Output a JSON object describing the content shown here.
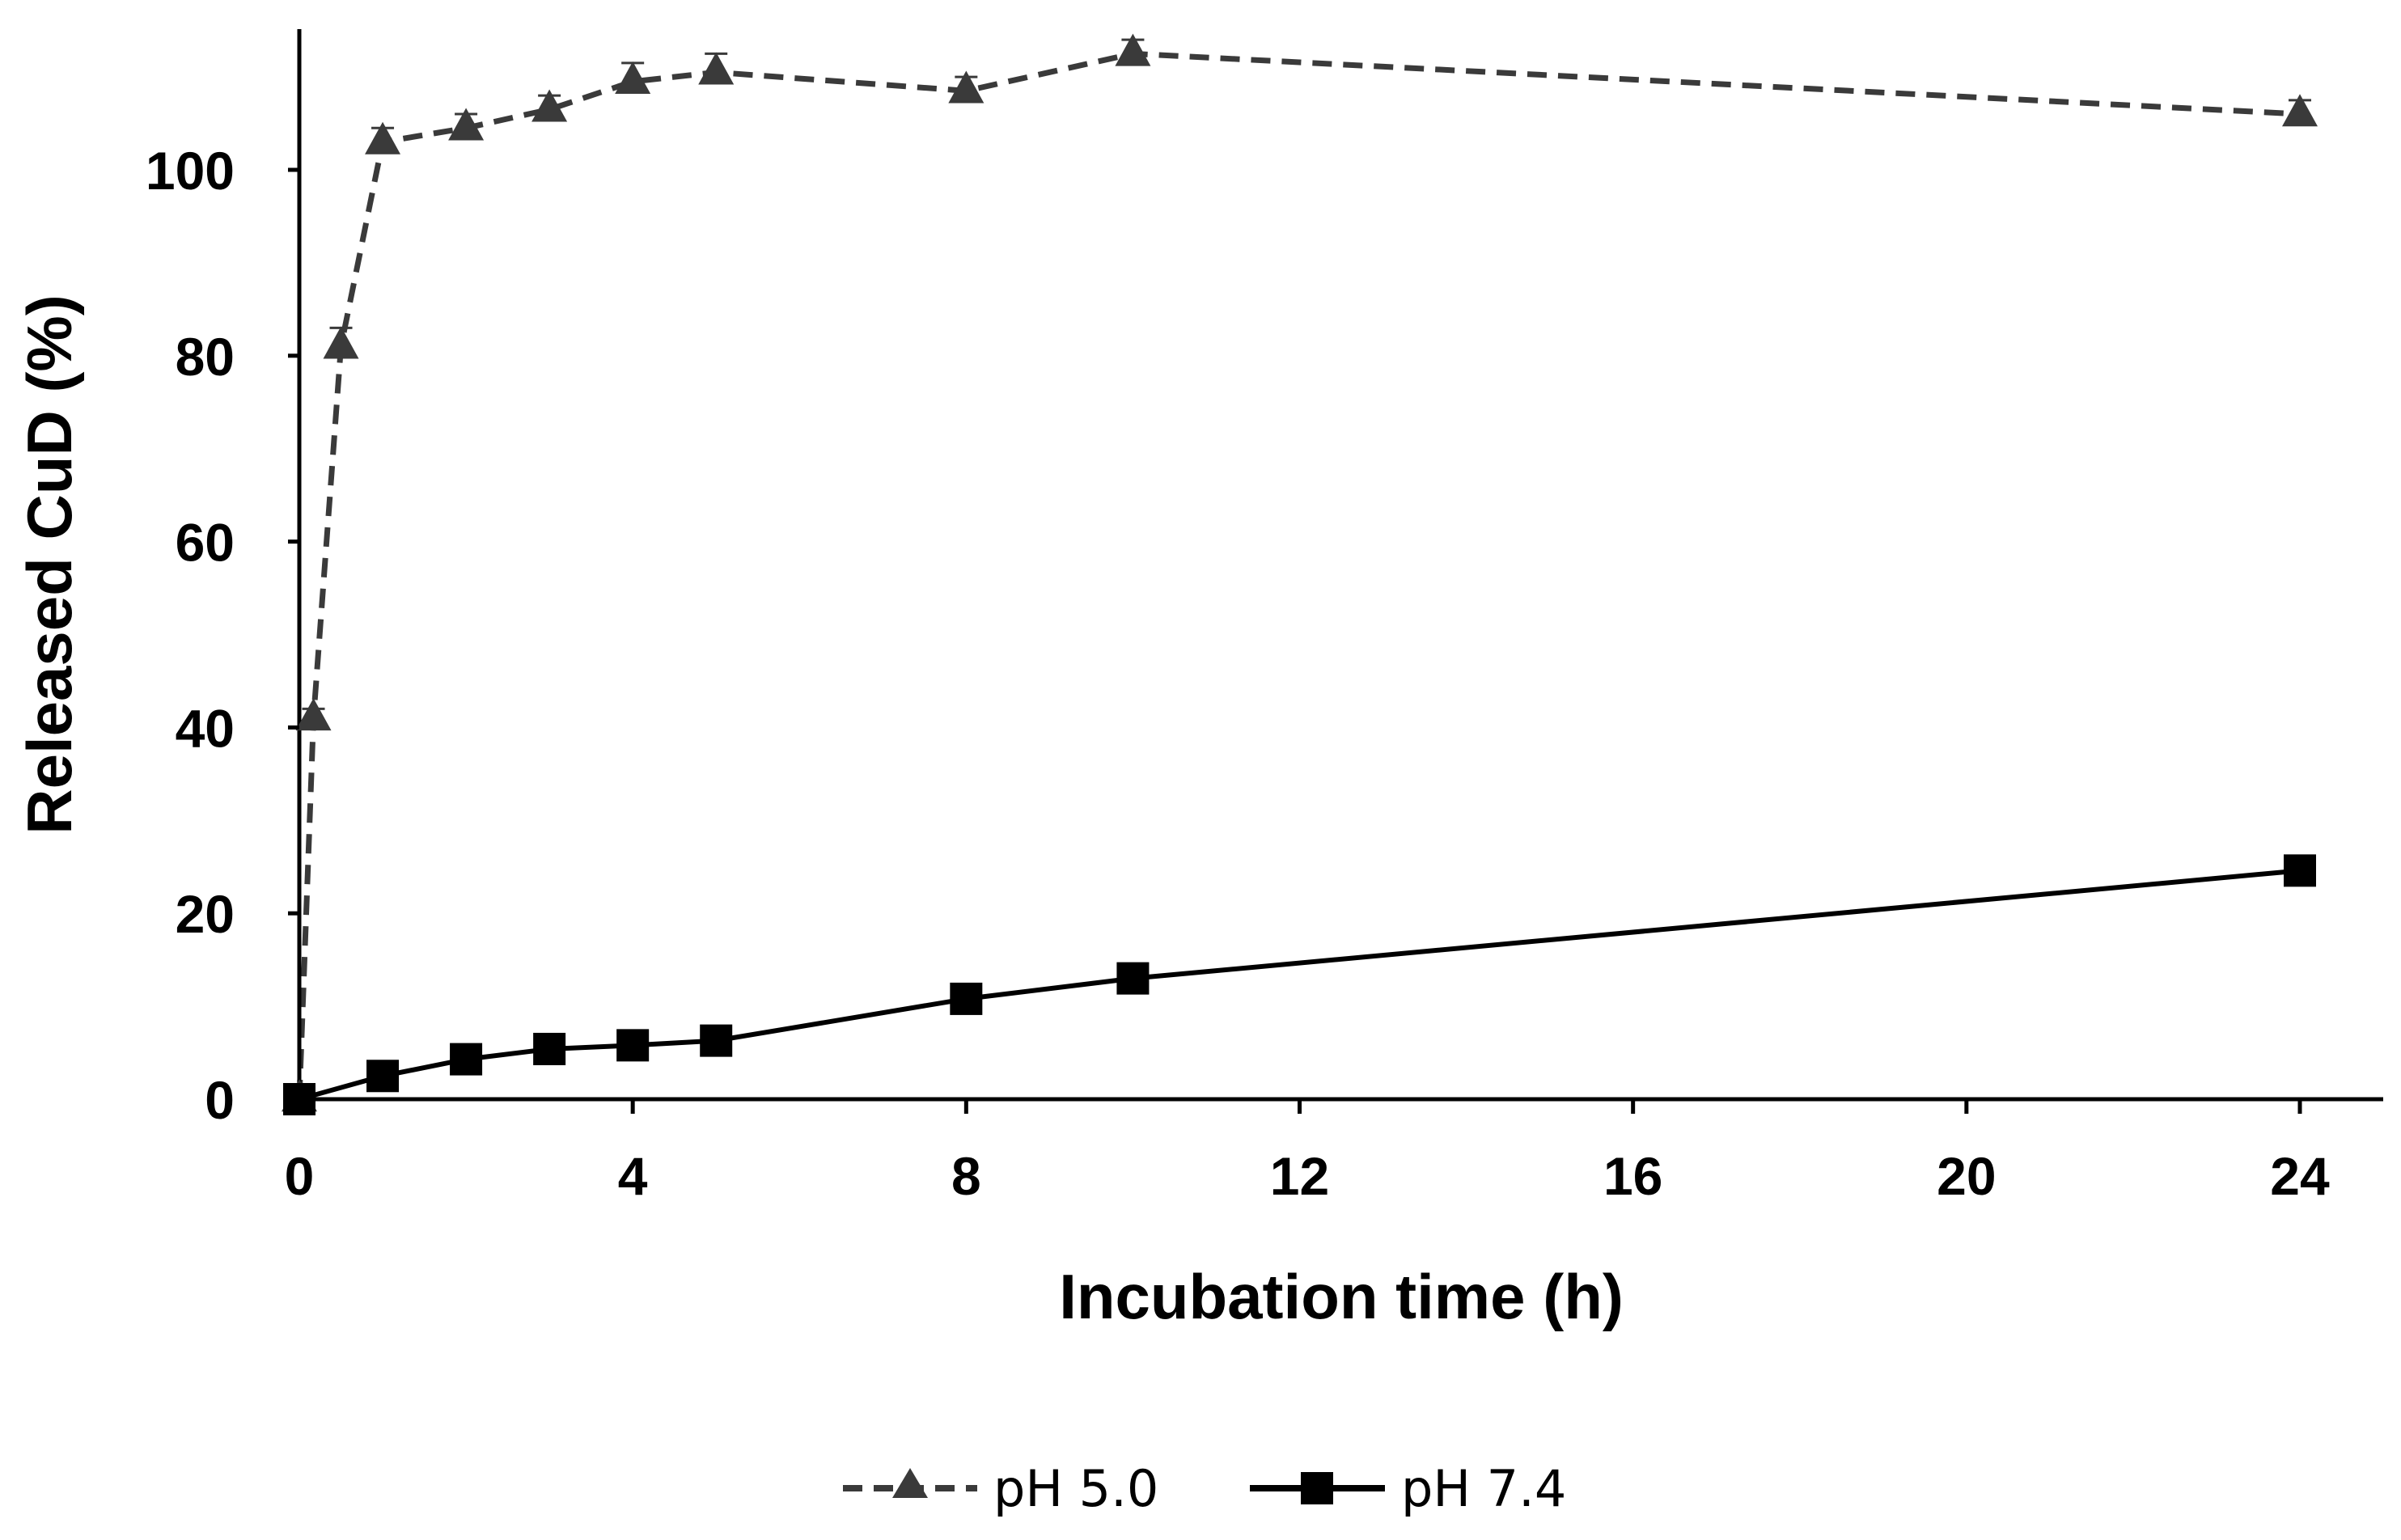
{
  "chart_data": {
    "type": "line",
    "title": "",
    "xlabel": "Incubation time (h)",
    "ylabel": "Released CuD (%)",
    "xlim": [
      0,
      25
    ],
    "ylim": [
      0,
      116
    ],
    "xticks": [
      0,
      4,
      8,
      12,
      16,
      20,
      24
    ],
    "yticks": [
      0,
      20,
      40,
      60,
      80,
      100
    ],
    "xtick_labels": [
      "0",
      "4",
      "8",
      "12",
      "16",
      "20",
      "24"
    ],
    "ytick_labels": [
      "0",
      "20",
      "40",
      "60",
      "80",
      "100"
    ],
    "grid": false,
    "legend_position": "bottom-center",
    "series": [
      {
        "name": "pH 5.0",
        "marker": "triangle",
        "line": "dashed",
        "color": "#3a3a3a",
        "x": [
          0,
          0.17,
          0.5,
          1,
          2,
          3,
          4,
          5,
          8,
          10,
          24
        ],
        "y": [
          0,
          41,
          81,
          103,
          104.5,
          106.5,
          109.5,
          110.5,
          108.5,
          112.5,
          106
        ],
        "error": [
          0,
          1,
          2,
          1.5,
          1.5,
          1.5,
          2,
          2,
          1.5,
          1.5,
          1.5
        ]
      },
      {
        "name": "pH 7.4",
        "marker": "square",
        "line": "solid",
        "color": "#000000",
        "x": [
          0,
          1,
          2,
          3,
          4,
          5,
          8,
          10,
          24
        ],
        "y": [
          0,
          2.5,
          4.3,
          5.4,
          5.8,
          6.3,
          10.8,
          13,
          24.6
        ],
        "error": [
          0,
          0,
          0,
          0,
          0,
          0,
          0,
          0,
          0
        ]
      }
    ]
  }
}
